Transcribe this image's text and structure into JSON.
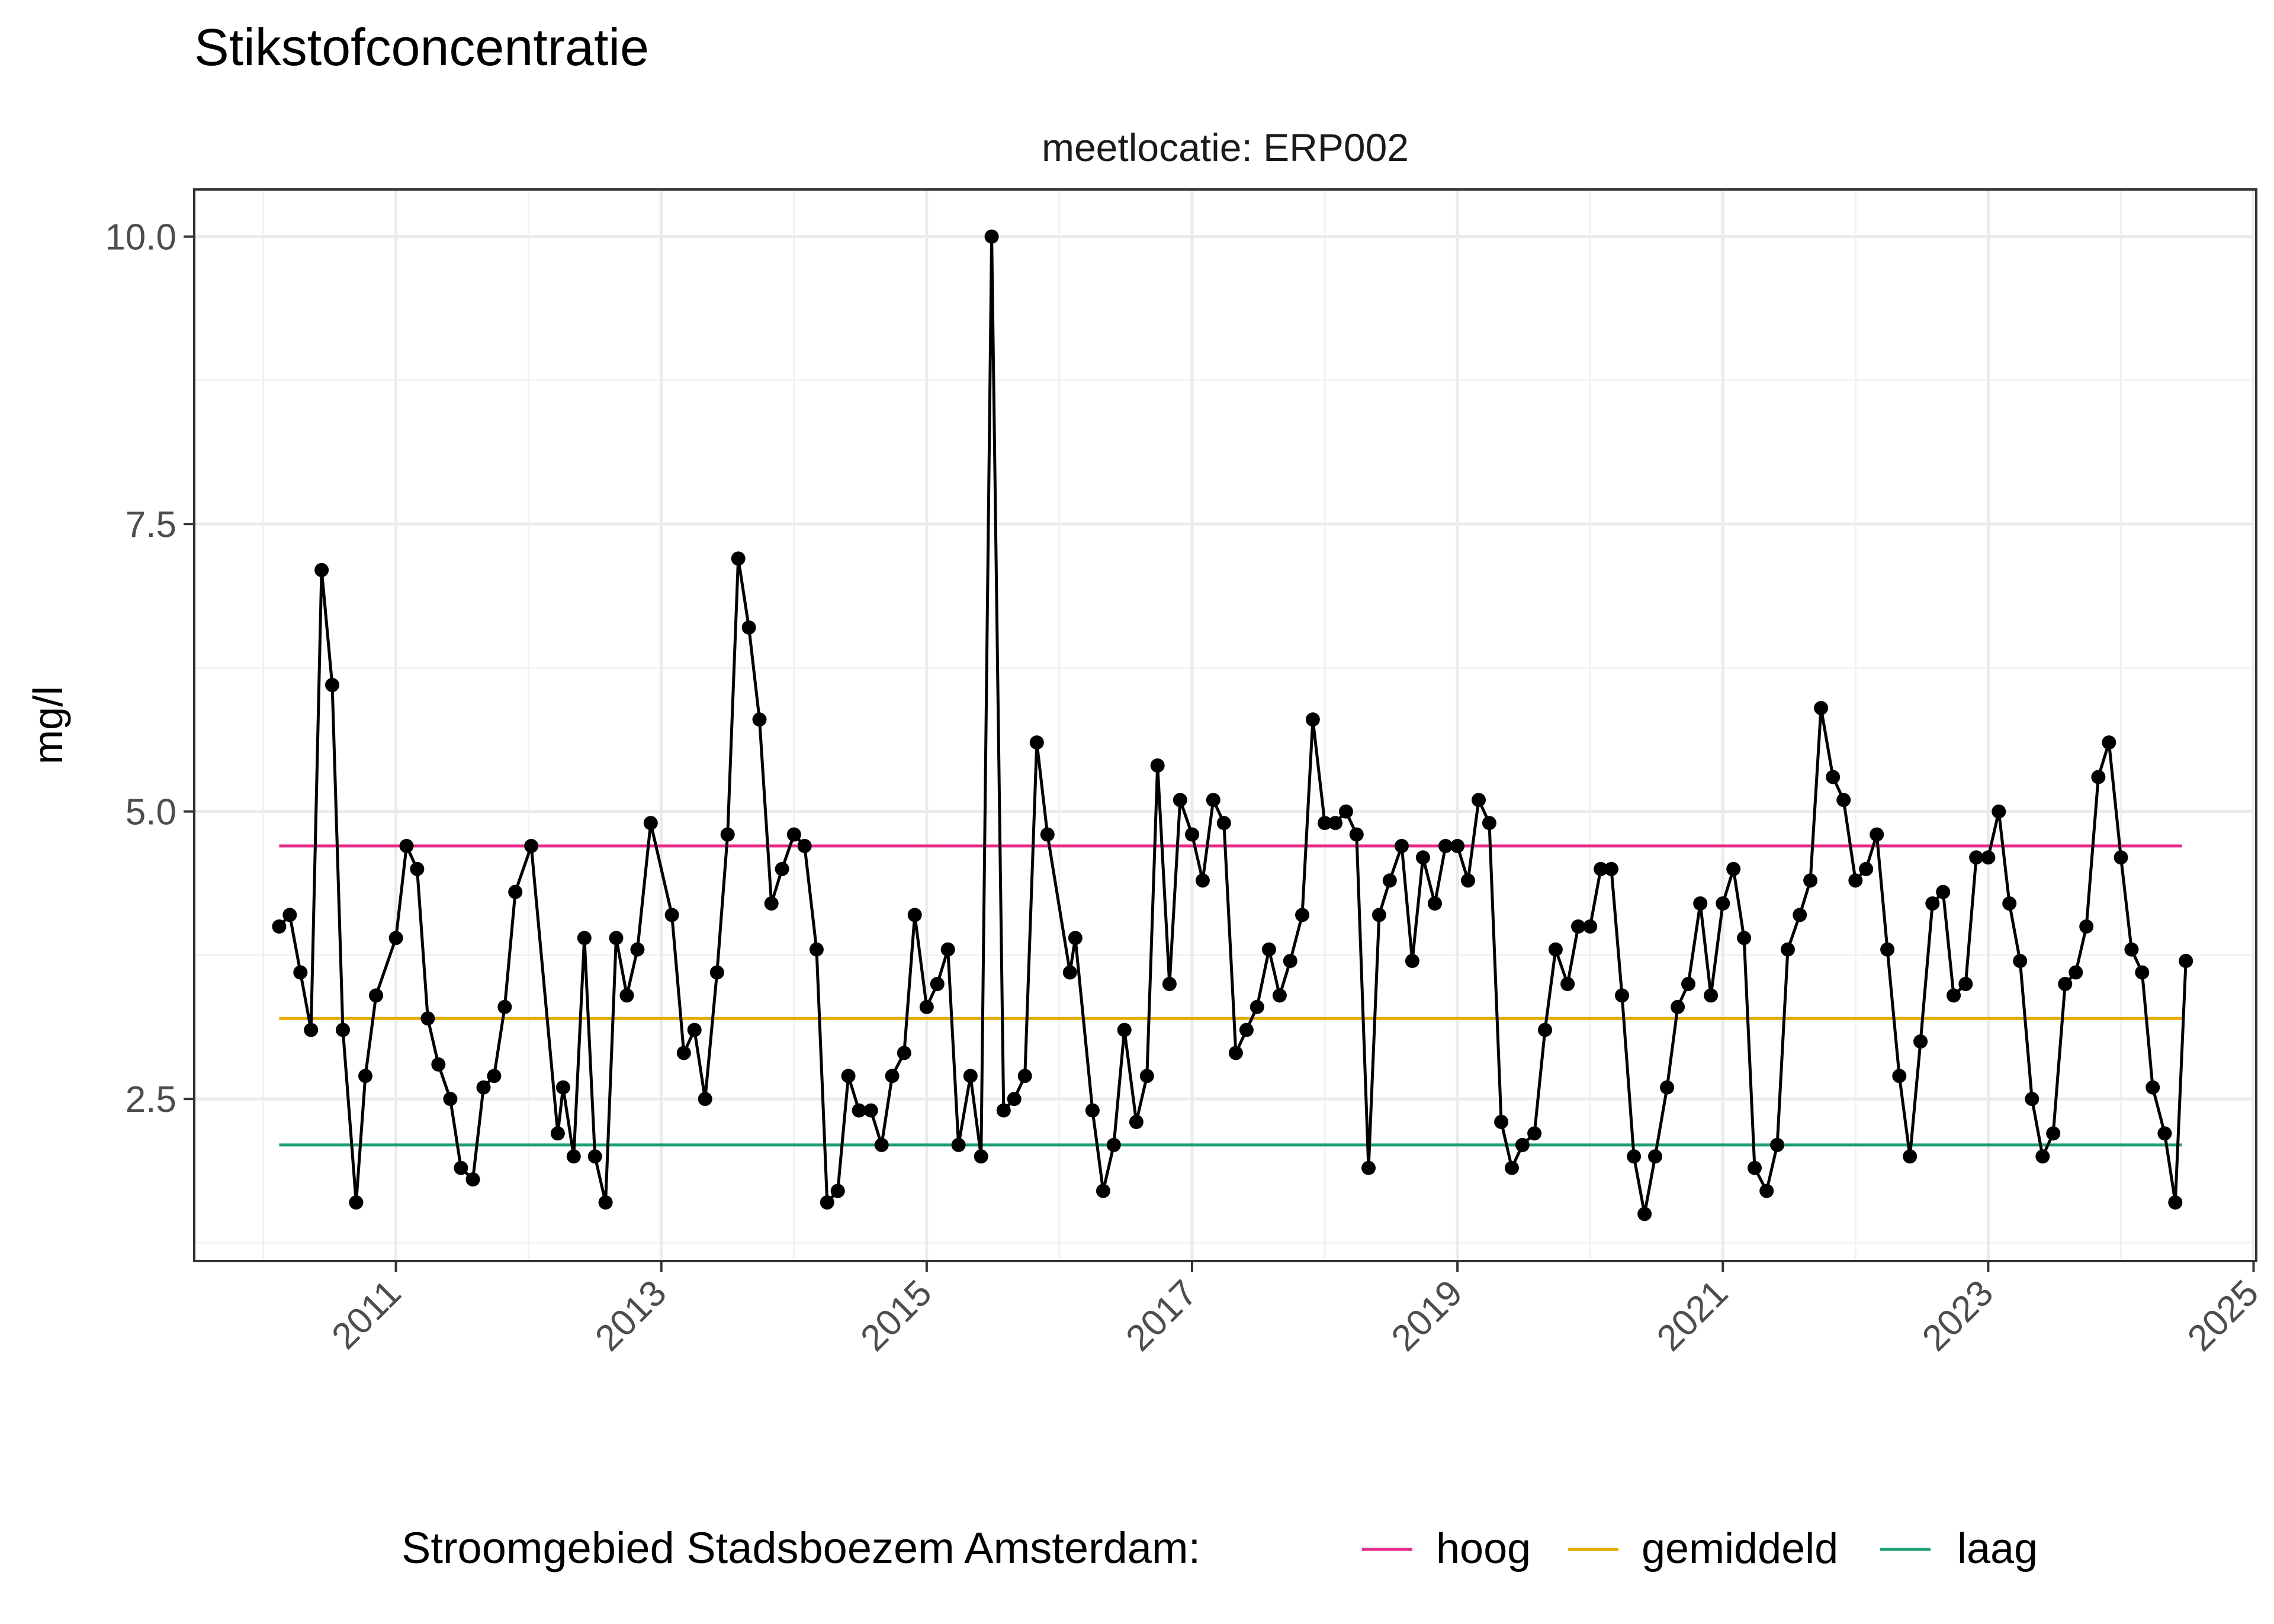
{
  "chart_data": {
    "type": "line",
    "title": "Stikstofconcentratie",
    "subtitle": "meetlocatie: ERP002",
    "xlabel": "",
    "ylabel": "mg/l",
    "x_ticks": [
      "2011",
      "2013",
      "2015",
      "2017",
      "2019",
      "2021",
      "2023",
      "2025"
    ],
    "y_ticks": [
      "2.5",
      "5.0",
      "7.5",
      "10.0"
    ],
    "xlim": [
      2009.48,
      2025.02
    ],
    "ylim": [
      1.09,
      10.41
    ],
    "grid": true,
    "legend": {
      "title": "Stroomgebied Stadsboezem Amsterdam:",
      "position": "bottom",
      "entries": [
        {
          "label": "hoog",
          "color": "#e7298a"
        },
        {
          "label": "gemiddeld",
          "color": "#e6ab02"
        },
        {
          "label": "laag",
          "color": "#1b9e77"
        }
      ]
    },
    "reference_lines": [
      {
        "name": "hoog",
        "value": 4.7,
        "color": "#e7298a",
        "x_range": [
          2010.12,
          2024.46
        ]
      },
      {
        "name": "gemiddeld",
        "value": 3.2,
        "color": "#e6ab02",
        "x_range": [
          2010.12,
          2024.46
        ]
      },
      {
        "name": "laag",
        "value": 2.1,
        "color": "#1b9e77",
        "x_range": [
          2010.12,
          2024.46
        ]
      }
    ],
    "series": [
      {
        "color": "#000000",
        "points": [
          [
            2010.12,
            4.0
          ],
          [
            2010.2,
            4.1
          ],
          [
            2010.28,
            3.6
          ],
          [
            2010.36,
            3.1
          ],
          [
            2010.44,
            7.1
          ],
          [
            2010.52,
            6.1
          ],
          [
            2010.6,
            3.1
          ],
          [
            2010.7,
            1.6
          ],
          [
            2010.77,
            2.7
          ],
          [
            2010.85,
            3.4
          ],
          [
            2011.0,
            3.9
          ],
          [
            2011.08,
            4.7
          ],
          [
            2011.16,
            4.5
          ],
          [
            2011.24,
            3.2
          ],
          [
            2011.32,
            2.8
          ],
          [
            2011.41,
            2.5
          ],
          [
            2011.49,
            1.9
          ],
          [
            2011.58,
            1.8
          ],
          [
            2011.66,
            2.6
          ],
          [
            2011.74,
            2.7
          ],
          [
            2011.82,
            3.3
          ],
          [
            2011.9,
            4.3
          ],
          [
            2012.02,
            4.7
          ],
          [
            2012.22,
            2.2
          ],
          [
            2012.26,
            2.6
          ],
          [
            2012.34,
            2.0
          ],
          [
            2012.42,
            3.9
          ],
          [
            2012.5,
            2.0
          ],
          [
            2012.58,
            1.6
          ],
          [
            2012.66,
            3.9
          ],
          [
            2012.74,
            3.4
          ],
          [
            2012.82,
            3.8
          ],
          [
            2012.92,
            4.9
          ],
          [
            2013.08,
            4.1
          ],
          [
            2013.17,
            2.9
          ],
          [
            2013.25,
            3.1
          ],
          [
            2013.33,
            2.5
          ],
          [
            2013.42,
            3.6
          ],
          [
            2013.5,
            4.8
          ],
          [
            2013.58,
            7.2
          ],
          [
            2013.66,
            6.6
          ],
          [
            2013.74,
            5.8
          ],
          [
            2013.83,
            4.2
          ],
          [
            2013.91,
            4.5
          ],
          [
            2014.0,
            4.8
          ],
          [
            2014.08,
            4.7
          ],
          [
            2014.17,
            3.8
          ],
          [
            2014.25,
            1.6
          ],
          [
            2014.33,
            1.7
          ],
          [
            2014.41,
            2.7
          ],
          [
            2014.49,
            2.4
          ],
          [
            2014.58,
            2.4
          ],
          [
            2014.66,
            2.1
          ],
          [
            2014.74,
            2.7
          ],
          [
            2014.83,
            2.9
          ],
          [
            2014.91,
            4.1
          ],
          [
            2015.0,
            3.3
          ],
          [
            2015.08,
            3.5
          ],
          [
            2015.16,
            3.8
          ],
          [
            2015.24,
            2.1
          ],
          [
            2015.33,
            2.7
          ],
          [
            2015.41,
            2.0
          ],
          [
            2015.49,
            10.0
          ],
          [
            2015.58,
            2.4
          ],
          [
            2015.66,
            2.5
          ],
          [
            2015.74,
            2.7
          ],
          [
            2015.83,
            5.6
          ],
          [
            2015.91,
            4.8
          ],
          [
            2016.08,
            3.6
          ],
          [
            2016.12,
            3.9
          ],
          [
            2016.25,
            2.4
          ],
          [
            2016.33,
            1.7
          ],
          [
            2016.41,
            2.1
          ],
          [
            2016.49,
            3.1
          ],
          [
            2016.58,
            2.3
          ],
          [
            2016.66,
            2.7
          ],
          [
            2016.74,
            5.4
          ],
          [
            2016.83,
            3.5
          ],
          [
            2016.91,
            5.1
          ],
          [
            2017.0,
            4.8
          ],
          [
            2017.08,
            4.4
          ],
          [
            2017.16,
            5.1
          ],
          [
            2017.24,
            4.9
          ],
          [
            2017.33,
            2.9
          ],
          [
            2017.41,
            3.1
          ],
          [
            2017.49,
            3.3
          ],
          [
            2017.58,
            3.8
          ],
          [
            2017.66,
            3.4
          ],
          [
            2017.74,
            3.7
          ],
          [
            2017.83,
            4.1
          ],
          [
            2017.91,
            5.8
          ],
          [
            2018.0,
            4.9
          ],
          [
            2018.08,
            4.9
          ],
          [
            2018.16,
            5.0
          ],
          [
            2018.24,
            4.8
          ],
          [
            2018.33,
            1.9
          ],
          [
            2018.41,
            4.1
          ],
          [
            2018.49,
            4.4
          ],
          [
            2018.58,
            4.7
          ],
          [
            2018.66,
            3.7
          ],
          [
            2018.74,
            4.6
          ],
          [
            2018.83,
            4.2
          ],
          [
            2018.91,
            4.7
          ],
          [
            2019.0,
            4.7
          ],
          [
            2019.08,
            4.4
          ],
          [
            2019.16,
            5.1
          ],
          [
            2019.24,
            4.9
          ],
          [
            2019.33,
            2.3
          ],
          [
            2019.41,
            1.9
          ],
          [
            2019.49,
            2.1
          ],
          [
            2019.58,
            2.2
          ],
          [
            2019.66,
            3.1
          ],
          [
            2019.74,
            3.8
          ],
          [
            2019.83,
            3.5
          ],
          [
            2019.91,
            4.0
          ],
          [
            2020.0,
            4.0
          ],
          [
            2020.08,
            4.5
          ],
          [
            2020.16,
            4.5
          ],
          [
            2020.24,
            3.4
          ],
          [
            2020.33,
            2.0
          ],
          [
            2020.41,
            1.5
          ],
          [
            2020.49,
            2.0
          ],
          [
            2020.58,
            2.6
          ],
          [
            2020.66,
            3.3
          ],
          [
            2020.74,
            3.5
          ],
          [
            2020.83,
            4.2
          ],
          [
            2020.91,
            3.4
          ],
          [
            2021.0,
            4.2
          ],
          [
            2021.08,
            4.5
          ],
          [
            2021.16,
            3.9
          ],
          [
            2021.24,
            1.9
          ],
          [
            2021.33,
            1.7
          ],
          [
            2021.41,
            2.1
          ],
          [
            2021.49,
            3.8
          ],
          [
            2021.58,
            4.1
          ],
          [
            2021.66,
            4.4
          ],
          [
            2021.74,
            5.9
          ],
          [
            2021.83,
            5.3
          ],
          [
            2021.91,
            5.1
          ],
          [
            2022.0,
            4.4
          ],
          [
            2022.08,
            4.5
          ],
          [
            2022.16,
            4.8
          ],
          [
            2022.24,
            3.8
          ],
          [
            2022.33,
            2.7
          ],
          [
            2022.41,
            2.0
          ],
          [
            2022.49,
            3.0
          ],
          [
            2022.58,
            4.2
          ],
          [
            2022.66,
            4.3
          ],
          [
            2022.74,
            3.4
          ],
          [
            2022.83,
            3.5
          ],
          [
            2022.91,
            4.6
          ],
          [
            2023.0,
            4.6
          ],
          [
            2023.08,
            5.0
          ],
          [
            2023.16,
            4.2
          ],
          [
            2023.24,
            3.7
          ],
          [
            2023.33,
            2.5
          ],
          [
            2023.41,
            2.0
          ],
          [
            2023.49,
            2.2
          ],
          [
            2023.58,
            3.5
          ],
          [
            2023.66,
            3.6
          ],
          [
            2023.74,
            4.0
          ],
          [
            2023.83,
            5.3
          ],
          [
            2023.91,
            5.6
          ],
          [
            2024.0,
            4.6
          ],
          [
            2024.08,
            3.8
          ],
          [
            2024.16,
            3.6
          ],
          [
            2024.24,
            2.6
          ],
          [
            2024.33,
            2.2
          ],
          [
            2024.41,
            1.6
          ],
          [
            2024.49,
            3.7
          ]
        ]
      }
    ]
  }
}
